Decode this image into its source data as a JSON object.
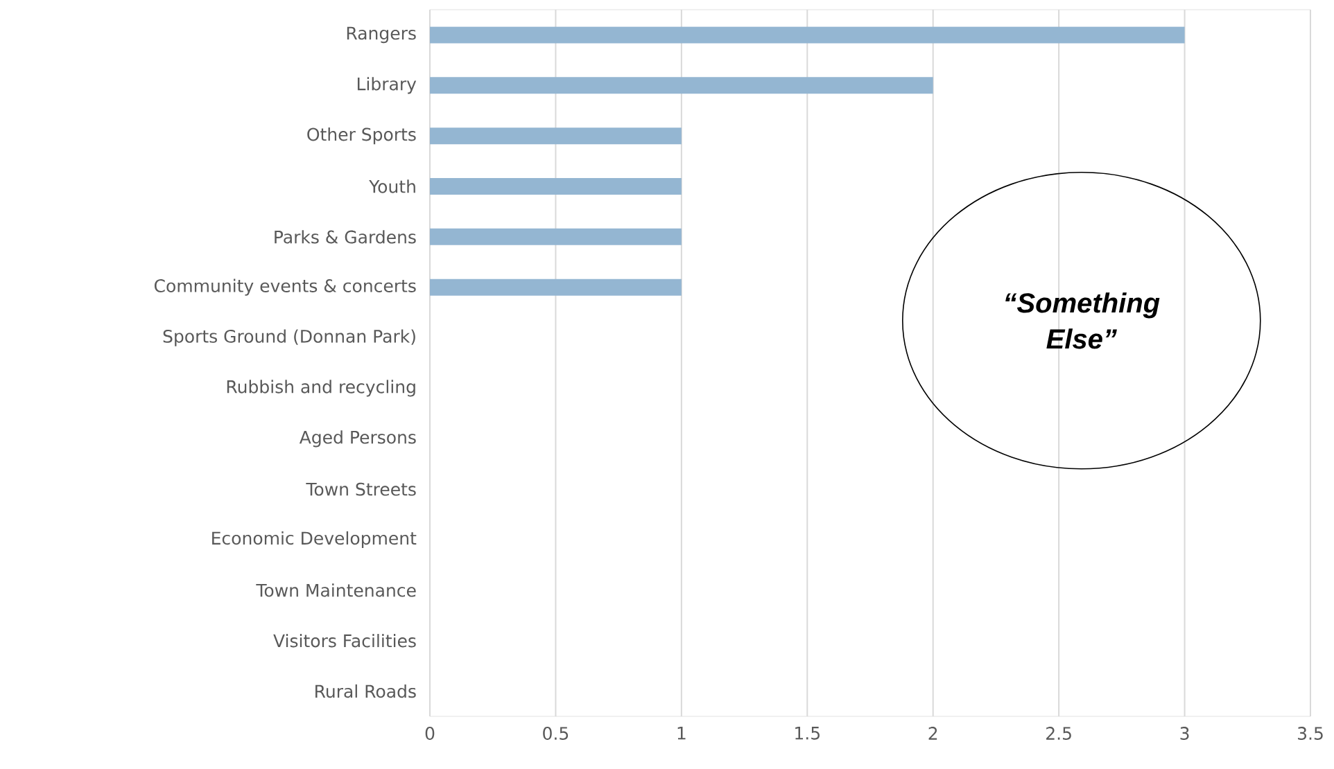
{
  "chart_data": {
    "type": "bar",
    "orientation": "horizontal",
    "categories": [
      "Rangers",
      "Library",
      "Other Sports",
      "Youth",
      "Parks & Gardens",
      "Community events & concerts",
      "Sports Ground (Donnan Park)",
      "Rubbish and recycling",
      "Aged Persons",
      "Town Streets",
      "Economic Development",
      "Town Maintenance",
      "Visitors Facilities",
      "Rural Roads"
    ],
    "values": [
      3,
      2,
      1,
      1,
      1,
      1,
      0,
      0,
      0,
      0,
      0,
      0,
      0,
      0
    ],
    "color": "#94b6d2",
    "xlim": [
      0,
      3.5
    ],
    "xticks": [
      0,
      0.5,
      1,
      1.5,
      2,
      2.5,
      3,
      3.5
    ],
    "grid": "x",
    "annotations": [
      "“Something Else”"
    ]
  }
}
